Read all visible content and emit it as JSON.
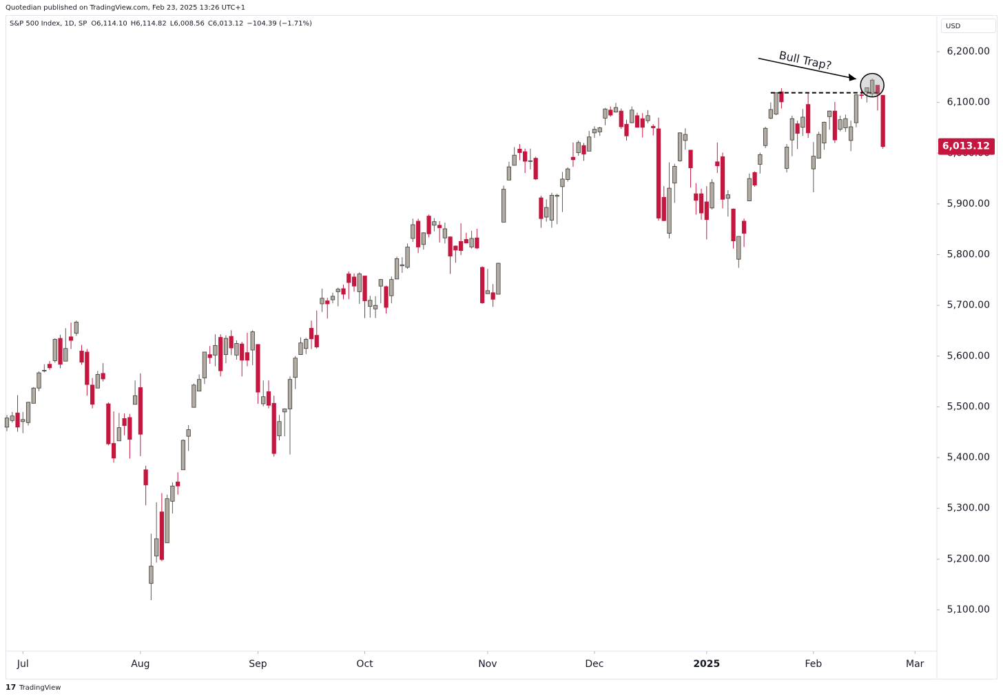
{
  "header": "Quotedian published on TradingView.com, Feb 23, 2025 13:26 UTC+1",
  "footer": "TradingView",
  "chart_data": {
    "type": "candlestick",
    "title": "S&P 500 Index, 1D, SP",
    "ohlc_legend": [
      "O6,114.10",
      "H6,114.82",
      "L6,008.56",
      "C6,013.12",
      "−104.39 (−1.71%)"
    ],
    "currency": "USD",
    "up_color": "#b3aca2",
    "down_color": "#c4163e",
    "annotation": "Bull Trap?",
    "dashed_level": 6119,
    "last_price": {
      "value": 6013.12,
      "label": "6,013.12"
    },
    "ylim": [
      5018.5,
      6272
    ],
    "yticks": [
      {
        "value": 5100,
        "label": "5,100.00"
      },
      {
        "value": 5200,
        "label": "5,200.00"
      },
      {
        "value": 5300,
        "label": "5,300.00"
      },
      {
        "value": 5400,
        "label": "5,400.00"
      },
      {
        "value": 5500,
        "label": "5,500.00"
      },
      {
        "value": 5600,
        "label": "5,600.00"
      },
      {
        "value": 5700,
        "label": "5,700.00"
      },
      {
        "value": 5800,
        "label": "5,800.00"
      },
      {
        "value": 5900,
        "label": "5,900.00"
      },
      {
        "value": 6000,
        "label": "6,000.00"
      },
      {
        "value": 6100,
        "label": "6,100.00"
      },
      {
        "value": 6200,
        "label": "6,200.00"
      }
    ],
    "xlim": [
      -0.26,
      174.1
    ],
    "xticks": [
      {
        "value": 3,
        "label": "Jul"
      },
      {
        "value": 25,
        "label": "Aug"
      },
      {
        "value": 47,
        "label": "Sep"
      },
      {
        "value": 67,
        "label": "Oct"
      },
      {
        "value": 90,
        "label": "Nov"
      },
      {
        "value": 110,
        "label": "Dec"
      },
      {
        "value": 131,
        "label": "2025"
      },
      {
        "value": 151,
        "label": "Feb"
      },
      {
        "value": 170,
        "label": "Mar"
      }
    ],
    "open": [
      5460,
      5473,
      5488,
      5471,
      5469,
      5507,
      5537,
      5572,
      5584,
      5591,
      5635,
      5590,
      5638,
      5645,
      5610,
      5608,
      5543,
      5537,
      5566,
      5506,
      5428,
      5433,
      5477,
      5479,
      5505,
      5538,
      5376,
      5152,
      5206,
      5293,
      5232,
      5314,
      5352,
      5376,
      5442,
      5499,
      5531,
      5557,
      5603,
      5602,
      5637,
      5603,
      5639,
      5602,
      5624,
      5607,
      5612,
      5623,
      5506,
      5530,
      5507,
      5443,
      5490,
      5496,
      5558,
      5603,
      5615,
      5655,
      5641,
      5703,
      5709,
      5711,
      5727,
      5733,
      5762,
      5756,
      5727,
      5758,
      5698,
      5693,
      5738,
      5737,
      5719,
      5752,
      5778,
      5775,
      5832,
      5866,
      5820,
      5876,
      5858,
      5858,
      5833,
      5835,
      5817,
      5826,
      5830,
      5815,
      5833,
      5775,
      5723,
      5725,
      5722,
      5864,
      5947,
      5976,
      6008,
      6003,
      5985,
      5990,
      5912,
      5874,
      5868,
      5915,
      5934,
      5948,
      5992,
      6001,
      6015,
      6004,
      6040,
      6042,
      6069,
      6085,
      6081,
      6083,
      6057,
      6060,
      6074,
      6068,
      6064,
      6053,
      6048,
      5913,
      5842,
      5941,
      5985,
      6025,
      6006,
      5920,
      5920,
      5904,
      5892,
      5983,
      5993,
      5911,
      5890,
      5791,
      5866,
      5906,
      5962,
      5978,
      6015,
      6069,
      6077,
      6121,
      5970,
      6026,
      6058,
      6051,
      6096,
      5969,
      5990,
      6020,
      6072,
      6083,
      6047,
      6050,
      6025,
      6060,
      6115,
      6121,
      6117,
      6134,
      6114
    ],
    "high": [
      5484,
      5490,
      5523,
      5490,
      5510,
      5539,
      5570,
      5584,
      5590,
      5635,
      5642,
      5655,
      5666,
      5670,
      5622,
      5614,
      5557,
      5571,
      5586,
      5509,
      5491,
      5488,
      5487,
      5486,
      5552,
      5566,
      5384,
      5250,
      5312,
      5330,
      5327,
      5351,
      5371,
      5436,
      5464,
      5546,
      5564,
      5608,
      5620,
      5643,
      5643,
      5641,
      5651,
      5631,
      5628,
      5646,
      5651,
      5623,
      5552,
      5552,
      5522,
      5484,
      5497,
      5560,
      5600,
      5637,
      5636,
      5670,
      5690,
      5733,
      5715,
      5725,
      5735,
      5741,
      5767,
      5763,
      5765,
      5758,
      5719,
      5718,
      5752,
      5739,
      5757,
      5796,
      5795,
      5822,
      5871,
      5871,
      5844,
      5879,
      5872,
      5866,
      5863,
      5836,
      5818,
      5862,
      5843,
      5847,
      5851,
      5777,
      5772,
      5742,
      5784,
      5936,
      5983,
      6012,
      6018,
      6009,
      6009,
      5993,
      5916,
      5909,
      5922,
      5920,
      5963,
      5972,
      6021,
      6025,
      6020,
      6044,
      6053,
      6052,
      6089,
      6092,
      6099,
      6088,
      6066,
      6092,
      6080,
      6079,
      6085,
      6057,
      6070,
      5935,
      5982,
      5979,
      6041,
      6049,
      6006,
      5941,
      5930,
      5935,
      5949,
      6021,
      6001,
      5927,
      5891,
      5836,
      5871,
      5960,
      5964,
      6001,
      6052,
      6100,
      6119,
      6128,
      6018,
      6074,
      6064,
      6087,
      6120,
      6022,
      6042,
      6062,
      6084,
      6101,
      6074,
      6076,
      6064,
      6116,
      6127,
      6129,
      6147,
      6134,
      6115
    ],
    "low": [
      5452,
      5469,
      5451,
      5448,
      5463,
      5507,
      5531,
      5568,
      5573,
      5587,
      5576,
      5590,
      5614,
      5640,
      5583,
      5522,
      5497,
      5537,
      5550,
      5424,
      5390,
      5433,
      5444,
      5398,
      5505,
      5403,
      5306,
      5119,
      5193,
      5196,
      5232,
      5290,
      5327,
      5376,
      5413,
      5499,
      5531,
      5545,
      5585,
      5580,
      5560,
      5586,
      5602,
      5593,
      5560,
      5580,
      5582,
      5506,
      5501,
      5497,
      5402,
      5434,
      5442,
      5406,
      5535,
      5603,
      5604,
      5614,
      5615,
      5687,
      5674,
      5704,
      5698,
      5712,
      5712,
      5727,
      5703,
      5675,
      5676,
      5675,
      5704,
      5684,
      5704,
      5752,
      5764,
      5772,
      5825,
      5803,
      5810,
      5834,
      5846,
      5824,
      5822,
      5762,
      5784,
      5799,
      5822,
      5812,
      5811,
      5703,
      5723,
      5697,
      5722,
      5864,
      5947,
      5976,
      5986,
      5961,
      5968,
      5947,
      5853,
      5865,
      5853,
      5860,
      5884,
      5944,
      5973,
      5995,
      5985,
      6004,
      6030,
      6034,
      6055,
      6072,
      6080,
      6048,
      6025,
      6059,
      6051,
      6031,
      6059,
      6035,
      5867,
      5866,
      5832,
      5902,
      5983,
      6007,
      5932,
      5879,
      5869,
      5830,
      5889,
      5961,
      5891,
      5875,
      5812,
      5774,
      5815,
      5906,
      5934,
      5960,
      6010,
      6067,
      6075,
      6088,
      5962,
      5994,
      6008,
      6034,
      6030,
      5923,
      5990,
      6007,
      6046,
      6020,
      6043,
      6042,
      6004,
      6051,
      6107,
      6100,
      6111,
      6084,
      6009
    ],
    "close": [
      5478,
      5482,
      5460,
      5475,
      5509,
      5537,
      5567,
      5572,
      5577,
      5633,
      5584,
      5615,
      5631,
      5667,
      5588,
      5544,
      5505,
      5564,
      5555,
      5427,
      5399,
      5459,
      5463,
      5436,
      5522,
      5446,
      5346,
      5186,
      5240,
      5199,
      5319,
      5344,
      5344,
      5434,
      5455,
      5543,
      5554,
      5608,
      5597,
      5621,
      5571,
      5635,
      5616,
      5625,
      5592,
      5592,
      5648,
      5529,
      5520,
      5503,
      5408,
      5471,
      5496,
      5554,
      5596,
      5626,
      5633,
      5634,
      5618,
      5714,
      5703,
      5718,
      5732,
      5722,
      5745,
      5738,
      5762,
      5709,
      5710,
      5700,
      5751,
      5696,
      5751,
      5792,
      5780,
      5815,
      5859,
      5815,
      5843,
      5841,
      5865,
      5853,
      5851,
      5797,
      5809,
      5808,
      5823,
      5832,
      5813,
      5705,
      5729,
      5712,
      5783,
      5929,
      5973,
      5996,
      6001,
      5984,
      5985,
      5949,
      5871,
      5893,
      5917,
      5917,
      5949,
      5969,
      5987,
      6021,
      5998,
      6032,
      6047,
      6050,
      6087,
      6075,
      6090,
      6052,
      6034,
      6085,
      6051,
      6051,
      6074,
      6050,
      5872,
      5867,
      5931,
      5974,
      6040,
      6037,
      5971,
      5907,
      5882,
      5869,
      5942,
      5975,
      5909,
      5918,
      5827,
      5836,
      5842,
      5950,
      5937,
      5997,
      6049,
      6086,
      6119,
      6101,
      6012,
      6068,
      6039,
      6071,
      6040,
      5994,
      6037,
      6061,
      6083,
      6026,
      6066,
      6068,
      6052,
      6115,
      6114,
      6129,
      6144,
      6117,
      6013
    ]
  }
}
